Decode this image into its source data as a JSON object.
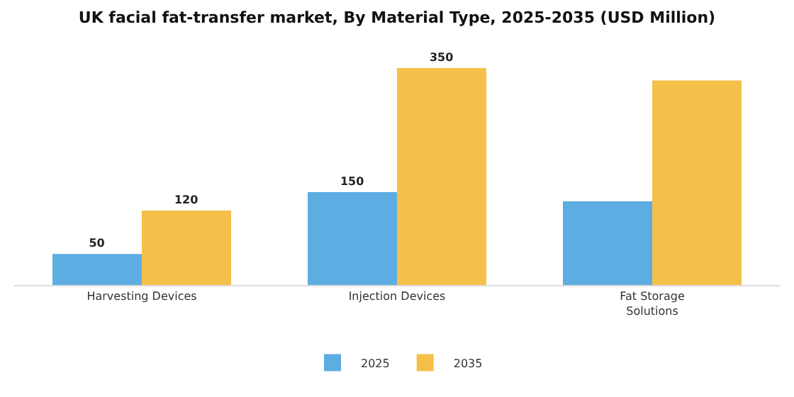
{
  "chart_data": {
    "type": "bar",
    "title": "UK facial fat-transfer market, By Material Type, 2025-2035 (USD Million)",
    "categories": [
      "Harvesting Devices",
      "Injection Devices",
      "Fat Storage Solutions"
    ],
    "series": [
      {
        "name": "2025",
        "color": "#5dade2",
        "values": [
          50,
          150,
          135
        ],
        "value_labels": [
          "50",
          "150",
          null
        ]
      },
      {
        "name": "2035",
        "color": "#f5c04a",
        "values": [
          120,
          350,
          330
        ],
        "value_labels": [
          "120",
          "350",
          null
        ]
      }
    ],
    "tick_labels": "x",
    "legend": "bottom"
  }
}
